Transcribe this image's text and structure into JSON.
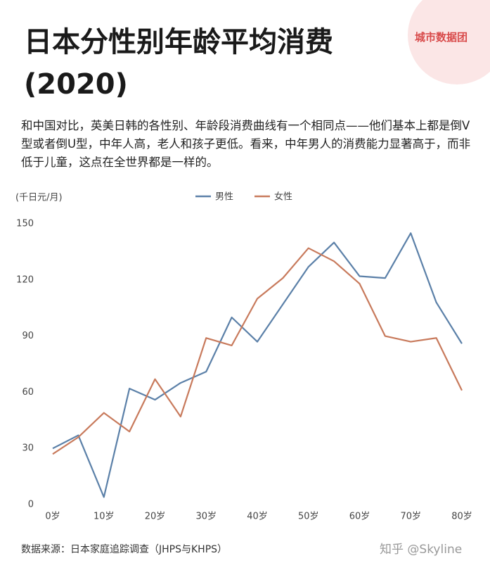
{
  "header": {
    "title": "日本分性别年龄平均消费 (2020)",
    "description": "和中国对比，英美日韩的各性别、年龄段消费曲线有一个相同点——他们基本上都是倒V型或者倒U型，中年人高，老人和孩子更低。看来，中年男人的消费能力显著高于，而非低于儿童，这点在全世界都是一样的。",
    "badge": "城市数据团"
  },
  "chart_data": {
    "type": "line",
    "y_label": "(千日元/月)",
    "x": [
      0,
      5,
      10,
      15,
      20,
      25,
      30,
      35,
      40,
      45,
      50,
      55,
      60,
      65,
      70,
      75,
      80
    ],
    "xlim": [
      0,
      80
    ],
    "xticks": [
      {
        "value": 0,
        "label": "0岁"
      },
      {
        "value": 10,
        "label": "10岁"
      },
      {
        "value": 20,
        "label": "20岁"
      },
      {
        "value": 30,
        "label": "30岁"
      },
      {
        "value": 40,
        "label": "40岁"
      },
      {
        "value": 50,
        "label": "50岁"
      },
      {
        "value": 60,
        "label": "60岁"
      },
      {
        "value": 70,
        "label": "70岁"
      },
      {
        "value": 80,
        "label": "80岁"
      }
    ],
    "ylim": [
      0,
      150
    ],
    "yticks": [
      0,
      30,
      60,
      90,
      120,
      150
    ],
    "grid": false,
    "legend": "top",
    "series": [
      {
        "name": "男性",
        "color": "#5b80a8",
        "values": [
          30,
          37,
          4,
          62,
          56,
          65,
          71,
          100,
          87,
          107,
          127,
          140,
          122,
          121,
          145,
          108,
          86
        ]
      },
      {
        "name": "女性",
        "color": "#c87a5c",
        "values": [
          27,
          36,
          49,
          39,
          67,
          47,
          89,
          85,
          110,
          121,
          137,
          130,
          118,
          90,
          87,
          89,
          61
        ]
      }
    ]
  },
  "footer": {
    "source": "数据来源：日本家庭追踪调查（JHPS与KHPS）",
    "watermark": "知乎 @Skyline"
  }
}
